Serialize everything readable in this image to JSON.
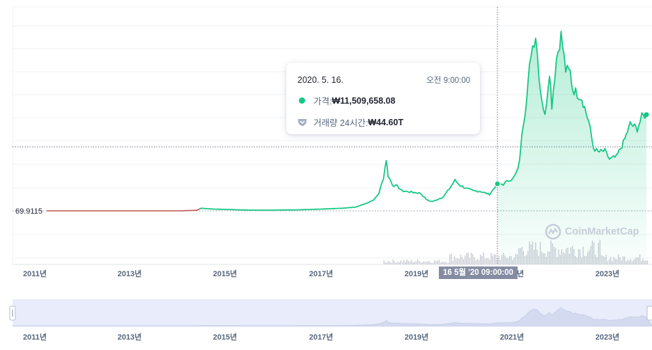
{
  "chart_data": {
    "type": "area",
    "x_axis_labels": [
      "2011년",
      "2013년",
      "2015년",
      "2017년",
      "2019년",
      "2021년",
      "2023년"
    ],
    "navigator_axis_labels": [
      "2011년",
      "2013년",
      "2015년",
      "2017년",
      "2019년",
      "2021년",
      "2023년"
    ],
    "y_reference_label": "69.9115",
    "y_axis_type": "linear",
    "grid": true,
    "series": [
      {
        "x": [
          2010.6,
          2011.0,
          2011.5,
          2012.0,
          2012.5,
          2013.0,
          2013.5,
          2013.85,
          2013.95,
          2014.2,
          2014.5,
          2015.0,
          2015.5,
          2016.0,
          2016.5,
          2017.0,
          2017.3,
          2017.5,
          2017.7,
          2017.8,
          2017.9,
          2017.96,
          2018.0,
          2018.1,
          2018.2,
          2018.3,
          2018.5,
          2018.7,
          2018.85,
          2018.95,
          2019.0,
          2019.2,
          2019.35,
          2019.45,
          2019.55,
          2019.7,
          2019.85,
          2020.0,
          2020.2,
          2020.37,
          2020.5,
          2020.6,
          2020.7,
          2020.78,
          2020.85,
          2020.9,
          2021.0,
          2021.1,
          2021.2,
          2021.3,
          2021.4,
          2021.5,
          2021.55,
          2021.65,
          2021.75,
          2021.85,
          2021.95,
          2022.0,
          2022.1,
          2022.2,
          2022.35,
          2022.45,
          2022.55,
          2022.7,
          2022.8,
          2022.95,
          2023.1,
          2023.25,
          2023.4,
          2023.5,
          2023.6
        ],
        "y": [
          69.9,
          69.9,
          69.9,
          69.9,
          69.9,
          69.9,
          69.9,
          250000,
          1100000,
          750000,
          600000,
          300000,
          300000,
          420000,
          700000,
          1100000,
          1600000,
          3000000,
          4800000,
          7500000,
          14000000,
          22000000,
          15000000,
          11000000,
          10500000,
          8500000,
          8000000,
          7500000,
          4500000,
          4000000,
          4200000,
          6000000,
          10000000,
          13000000,
          11000000,
          9500000,
          8500000,
          8300000,
          7000000,
          11509658.08,
          11300000,
          13000000,
          13500000,
          16000000,
          21000000,
          34000000,
          46000000,
          68000000,
          75000000,
          52000000,
          40000000,
          60000000,
          45000000,
          65000000,
          75000000,
          60000000,
          59000000,
          52000000,
          50000000,
          48000000,
          38000000,
          27000000,
          25000000,
          25500000,
          22000000,
          23000000,
          29000000,
          37000000,
          35000000,
          40000000,
          41000000
        ]
      }
    ],
    "tooltip": {
      "date": "2020. 5. 16.",
      "time": "오전 9:00:00",
      "price_label": "가격:",
      "price_value": "₩11,509,658.08",
      "volume_label": "거래량 24시간:",
      "volume_value": "₩44.60T"
    },
    "crosshair_label": "16 5월 '20  09:00:00",
    "watermark": "CoinMarketCap",
    "colors": {
      "line": "#16c784",
      "area_fill": "#16c784",
      "early_line": "#c0564b",
      "volume": "#c5c9d2",
      "navigator_fill": "#e8ecfb",
      "navigator_line": "#c8cfe6",
      "grid": "#eff2f5",
      "badge": "#858ca2"
    }
  }
}
